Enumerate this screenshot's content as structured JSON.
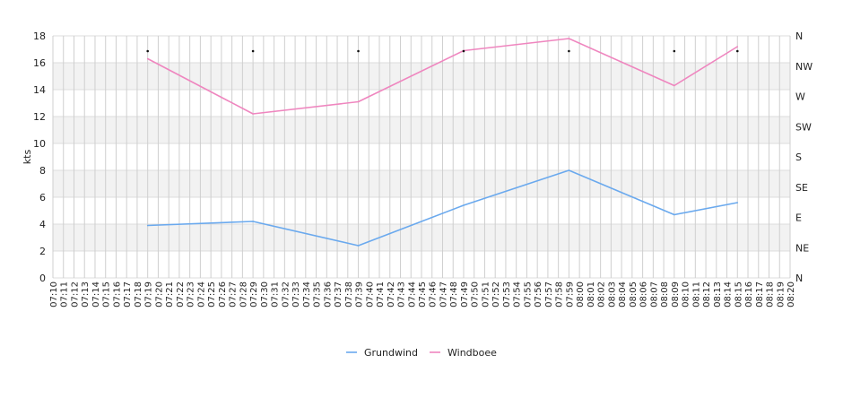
{
  "chart_data": {
    "type": "line",
    "ylabel": "kts",
    "ylim": [
      0,
      18
    ],
    "yticks": [
      0,
      2,
      4,
      6,
      8,
      10,
      12,
      14,
      16,
      18
    ],
    "right_axis_labels": [
      "N",
      "NE",
      "E",
      "SE",
      "S",
      "SW",
      "W",
      "NW",
      "N"
    ],
    "grid": true,
    "x_categories": [
      "07:10",
      "07:11",
      "07:12",
      "07:13",
      "07:14",
      "07:15",
      "07:16",
      "07:17",
      "07:18",
      "07:19",
      "07:20",
      "07:21",
      "07:22",
      "07:23",
      "07:24",
      "07:25",
      "07:26",
      "07:27",
      "07:28",
      "07:29",
      "07:30",
      "07:31",
      "07:32",
      "07:33",
      "07:34",
      "07:35",
      "07:36",
      "07:37",
      "07:38",
      "07:39",
      "07:40",
      "07:41",
      "07:42",
      "07:43",
      "07:44",
      "07:45",
      "07:46",
      "07:47",
      "07:48",
      "07:49",
      "07:50",
      "07:51",
      "07:52",
      "07:53",
      "07:54",
      "07:55",
      "07:56",
      "07:57",
      "07:58",
      "07:59",
      "08:00",
      "08:01",
      "08:02",
      "08:03",
      "08:04",
      "08:05",
      "08:06",
      "08:07",
      "08:08",
      "08:09",
      "08:10",
      "08:11",
      "08:12",
      "08:13",
      "08:14",
      "08:15",
      "08:16",
      "08:17",
      "08:18",
      "08:19",
      "08:20"
    ],
    "series": [
      {
        "name": "Grundwind",
        "color": "#6aa9ee",
        "points": [
          {
            "x": "07:19",
            "y": 3.9
          },
          {
            "x": "07:29",
            "y": 4.2
          },
          {
            "x": "07:39",
            "y": 2.4
          },
          {
            "x": "07:49",
            "y": 5.4
          },
          {
            "x": "07:59",
            "y": 8.0
          },
          {
            "x": "08:09",
            "y": 4.7
          },
          {
            "x": "08:15",
            "y": 5.6
          }
        ]
      },
      {
        "name": "Windboee",
        "color": "#ef86bf",
        "points": [
          {
            "x": "07:19",
            "y": 16.3
          },
          {
            "x": "07:29",
            "y": 12.2
          },
          {
            "x": "07:39",
            "y": 13.1
          },
          {
            "x": "07:49",
            "y": 16.9
          },
          {
            "x": "07:59",
            "y": 17.8
          },
          {
            "x": "08:09",
            "y": 14.3
          },
          {
            "x": "08:15",
            "y": 17.2
          }
        ]
      }
    ],
    "direction_marker_times": [
      "07:19",
      "07:29",
      "07:39",
      "07:49",
      "07:59",
      "08:09",
      "08:15"
    ],
    "legend": {
      "position": "bottom",
      "entries": [
        "Grundwind",
        "Windboee"
      ]
    }
  }
}
